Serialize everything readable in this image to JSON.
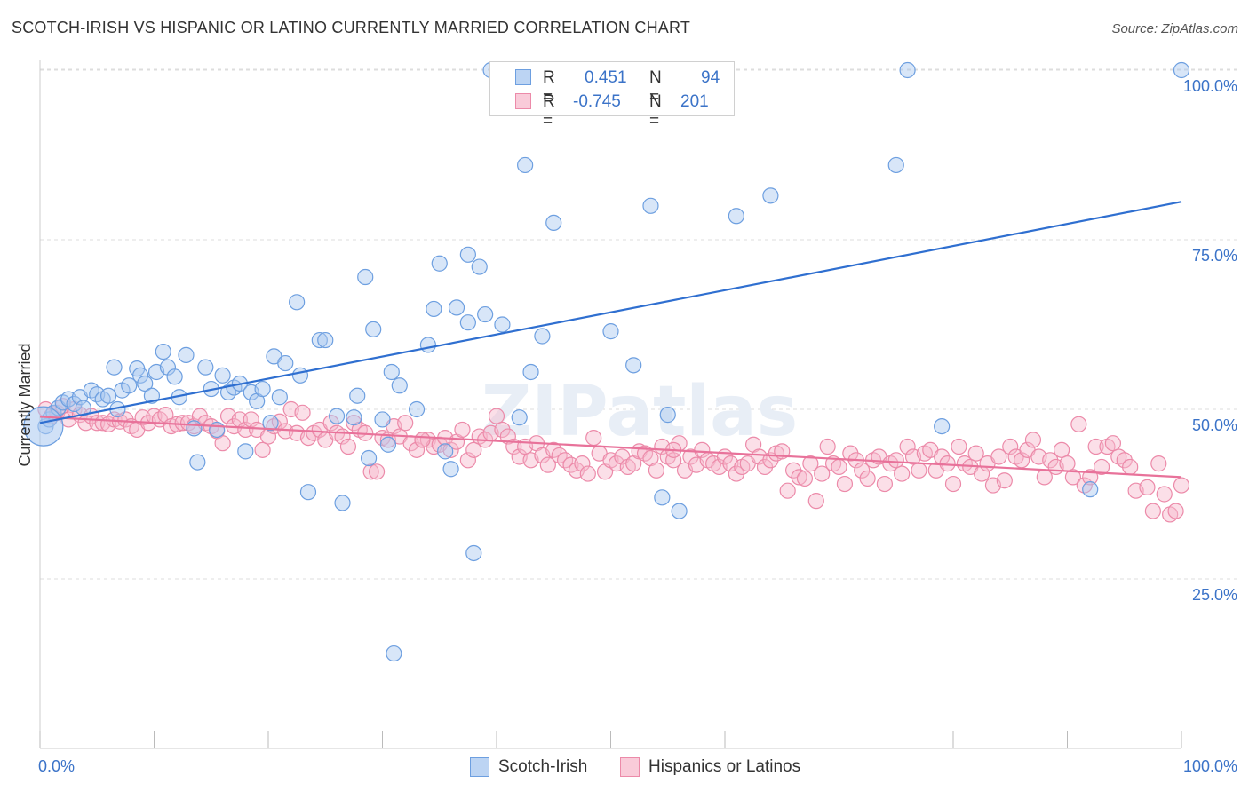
{
  "title": "SCOTCH-IRISH VS HISPANIC OR LATINO CURRENTLY MARRIED CORRELATION CHART",
  "source": "Source: ZipAtlas.com",
  "watermark": "ZIPatlas",
  "legend": {
    "rows": [
      {
        "r_label": "R =",
        "r_value": "0.451",
        "n_label": "N =",
        "n_value": "94"
      },
      {
        "r_label": "R =",
        "r_value": "-0.745",
        "n_label": "N =",
        "n_value": "201"
      }
    ]
  },
  "bottom_legend": [
    {
      "label": "Scotch-Irish"
    },
    {
      "label": "Hispanics or Latinos"
    }
  ],
  "colors": {
    "blue_fill": "#a9c8f0",
    "blue_stroke": "#6d9fe0",
    "blue_line": "#2f6fd0",
    "pink_fill": "#f6b8cc",
    "pink_stroke": "#ec8aa9",
    "pink_line": "#e8729a",
    "axis_text": "#3b73c8",
    "grid": "#dddddd"
  },
  "chart_data": {
    "type": "scatter",
    "title": "SCOTCH-IRISH VS HISPANIC OR LATINO CURRENTLY MARRIED CORRELATION CHART",
    "xlabel": "",
    "ylabel": "Currently Married",
    "xlim": [
      0,
      100
    ],
    "ylim": [
      0,
      102
    ],
    "x_tick_labels": [
      "0.0%",
      "100.0%"
    ],
    "y_ticks": [
      25,
      50,
      75,
      100
    ],
    "y_tick_labels": [
      "25.0%",
      "50.0%",
      "75.0%",
      "100.0%"
    ],
    "grid": true,
    "legend_placement": "top-center",
    "series": [
      {
        "name": "Scotch-Irish",
        "r": 0.451,
        "n": 94,
        "trend": {
          "x": [
            0,
            100
          ],
          "y": [
            48.0,
            80.6
          ]
        },
        "points": [
          [
            0.5,
            47.5
          ],
          [
            0.8,
            48.5
          ],
          [
            1.2,
            49.5
          ],
          [
            1.6,
            50.2
          ],
          [
            2.0,
            51.0
          ],
          [
            2.5,
            51.5
          ],
          [
            3.0,
            50.8
          ],
          [
            3.5,
            51.8
          ],
          [
            4.5,
            52.8
          ],
          [
            5.0,
            52.2
          ],
          [
            5.5,
            51.5
          ],
          [
            6.5,
            56.2
          ],
          [
            6.8,
            50.0
          ],
          [
            7.2,
            52.8
          ],
          [
            7.8,
            53.5
          ],
          [
            8.5,
            56.0
          ],
          [
            8.8,
            55.0
          ],
          [
            9.2,
            53.8
          ],
          [
            9.8,
            52.0
          ],
          [
            10.2,
            55.5
          ],
          [
            10.8,
            58.5
          ],
          [
            11.2,
            56.2
          ],
          [
            11.8,
            54.8
          ],
          [
            12.2,
            51.8
          ],
          [
            12.8,
            58.0
          ],
          [
            13.5,
            47.2
          ],
          [
            13.8,
            42.2
          ],
          [
            14.5,
            56.2
          ],
          [
            15.0,
            53.0
          ],
          [
            15.5,
            47.0
          ],
          [
            16.0,
            55.0
          ],
          [
            16.5,
            52.5
          ],
          [
            17.0,
            53.2
          ],
          [
            17.5,
            53.8
          ],
          [
            18.0,
            43.8
          ],
          [
            18.5,
            52.5
          ],
          [
            19.0,
            51.2
          ],
          [
            19.5,
            53.0
          ],
          [
            20.2,
            48.0
          ],
          [
            20.5,
            57.8
          ],
          [
            21.0,
            51.8
          ],
          [
            21.5,
            56.8
          ],
          [
            22.5,
            65.8
          ],
          [
            22.8,
            55.0
          ],
          [
            23.5,
            37.8
          ],
          [
            24.5,
            60.2
          ],
          [
            25.0,
            60.2
          ],
          [
            26.0,
            49.0
          ],
          [
            26.5,
            36.2
          ],
          [
            27.5,
            48.8
          ],
          [
            27.8,
            52.0
          ],
          [
            28.5,
            69.5
          ],
          [
            28.8,
            42.8
          ],
          [
            29.2,
            61.8
          ],
          [
            30.0,
            48.5
          ],
          [
            30.5,
            44.8
          ],
          [
            30.8,
            55.5
          ],
          [
            31.0,
            14.0
          ],
          [
            31.5,
            53.5
          ],
          [
            33.0,
            50.0
          ],
          [
            34.0,
            59.5
          ],
          [
            34.5,
            64.8
          ],
          [
            35.0,
            71.5
          ],
          [
            35.5,
            43.8
          ],
          [
            36.0,
            41.2
          ],
          [
            36.5,
            65.0
          ],
          [
            37.5,
            72.8
          ],
          [
            37.5,
            62.8
          ],
          [
            38.0,
            28.8
          ],
          [
            38.5,
            71.0
          ],
          [
            39.0,
            64.0
          ],
          [
            39.5,
            100.0
          ],
          [
            40.5,
            62.5
          ],
          [
            42.0,
            48.8
          ],
          [
            42.5,
            86.0
          ],
          [
            43.0,
            55.5
          ],
          [
            44.0,
            60.8
          ],
          [
            45.0,
            77.5
          ],
          [
            49.0,
            100.0
          ],
          [
            50.0,
            61.5
          ],
          [
            52.0,
            56.5
          ],
          [
            53.5,
            80.0
          ],
          [
            55.0,
            49.2
          ],
          [
            56.0,
            35.0
          ],
          [
            61.0,
            78.5
          ],
          [
            64.0,
            81.5
          ],
          [
            75.0,
            86.0
          ],
          [
            76.0,
            100.0
          ],
          [
            79.0,
            47.5
          ],
          [
            92.0,
            38.2
          ],
          [
            100.0,
            100.0
          ],
          [
            54.5,
            37.0
          ],
          [
            3.8,
            50.2
          ],
          [
            6.0,
            52.0
          ]
        ],
        "big_point": [
          0.3,
          47.5
        ]
      },
      {
        "name": "Hispanics or Latinos",
        "r": -0.745,
        "n": 201,
        "trend": {
          "x": [
            0,
            100
          ],
          "y": [
            48.9,
            40.0
          ]
        },
        "points": [
          [
            0.5,
            50.0
          ],
          [
            1.0,
            49.0
          ],
          [
            1.5,
            49.5
          ],
          [
            2.0,
            50.5
          ],
          [
            2.5,
            48.5
          ],
          [
            3.0,
            50.0
          ],
          [
            3.5,
            49.2
          ],
          [
            4.0,
            48.0
          ],
          [
            4.5,
            49.0
          ],
          [
            5.0,
            48.0
          ],
          [
            5.5,
            48.0
          ],
          [
            6.0,
            47.8
          ],
          [
            6.5,
            48.5
          ],
          [
            7.0,
            48.2
          ],
          [
            7.5,
            48.5
          ],
          [
            8.0,
            47.5
          ],
          [
            8.5,
            47.0
          ],
          [
            9.0,
            48.8
          ],
          [
            9.5,
            48.0
          ],
          [
            10.0,
            49.0
          ],
          [
            10.5,
            48.5
          ],
          [
            11.0,
            49.2
          ],
          [
            11.5,
            47.5
          ],
          [
            12.0,
            47.8
          ],
          [
            12.5,
            48.0
          ],
          [
            13.0,
            48.0
          ],
          [
            13.5,
            47.5
          ],
          [
            14.0,
            49.0
          ],
          [
            14.5,
            48.0
          ],
          [
            15.0,
            47.5
          ],
          [
            15.5,
            46.8
          ],
          [
            16.0,
            45.0
          ],
          [
            16.5,
            49.0
          ],
          [
            17.0,
            47.5
          ],
          [
            17.5,
            48.5
          ],
          [
            18.0,
            47.0
          ],
          [
            18.5,
            48.5
          ],
          [
            19.0,
            47.0
          ],
          [
            19.5,
            44.0
          ],
          [
            20.0,
            46.0
          ],
          [
            20.5,
            47.5
          ],
          [
            21.0,
            48.2
          ],
          [
            21.5,
            46.8
          ],
          [
            22.0,
            50.0
          ],
          [
            22.5,
            46.5
          ],
          [
            23.0,
            49.5
          ],
          [
            23.5,
            45.8
          ],
          [
            24.0,
            46.5
          ],
          [
            24.5,
            47.0
          ],
          [
            25.0,
            45.5
          ],
          [
            25.5,
            48.0
          ],
          [
            26.0,
            46.5
          ],
          [
            26.5,
            46.0
          ],
          [
            27.0,
            44.5
          ],
          [
            27.5,
            48.0
          ],
          [
            28.0,
            47.0
          ],
          [
            28.5,
            46.5
          ],
          [
            29.0,
            40.8
          ],
          [
            29.5,
            40.8
          ],
          [
            30.0,
            45.8
          ],
          [
            30.5,
            45.5
          ],
          [
            31.0,
            47.5
          ],
          [
            31.5,
            46.0
          ],
          [
            32.0,
            48.0
          ],
          [
            32.5,
            45.0
          ],
          [
            33.0,
            44.0
          ],
          [
            33.5,
            45.5
          ],
          [
            34.0,
            45.5
          ],
          [
            34.5,
            44.5
          ],
          [
            35.0,
            44.8
          ],
          [
            35.5,
            45.8
          ],
          [
            36.0,
            44.0
          ],
          [
            36.5,
            45.2
          ],
          [
            37.0,
            47.0
          ],
          [
            37.5,
            42.5
          ],
          [
            38.0,
            44.0
          ],
          [
            38.5,
            46.0
          ],
          [
            39.0,
            45.5
          ],
          [
            39.5,
            46.5
          ],
          [
            40.0,
            49.0
          ],
          [
            40.5,
            47.0
          ],
          [
            41.0,
            46.0
          ],
          [
            41.5,
            44.5
          ],
          [
            42.0,
            43.0
          ],
          [
            42.5,
            44.5
          ],
          [
            43.0,
            42.5
          ],
          [
            43.5,
            45.0
          ],
          [
            44.0,
            43.2
          ],
          [
            44.5,
            41.8
          ],
          [
            45.0,
            44.0
          ],
          [
            45.5,
            43.2
          ],
          [
            46.0,
            42.5
          ],
          [
            46.5,
            41.8
          ],
          [
            47.0,
            41.0
          ],
          [
            47.5,
            42.0
          ],
          [
            48.0,
            40.5
          ],
          [
            48.5,
            45.8
          ],
          [
            49.0,
            43.5
          ],
          [
            49.5,
            40.8
          ],
          [
            50.0,
            42.5
          ],
          [
            50.5,
            42.0
          ],
          [
            51.0,
            43.0
          ],
          [
            51.5,
            41.5
          ],
          [
            52.0,
            42.0
          ],
          [
            52.5,
            43.8
          ],
          [
            53.0,
            43.5
          ],
          [
            53.5,
            42.8
          ],
          [
            54.0,
            41.0
          ],
          [
            54.5,
            44.5
          ],
          [
            55.0,
            43.0
          ],
          [
            55.5,
            42.5
          ],
          [
            56.0,
            45.0
          ],
          [
            56.5,
            41.0
          ],
          [
            57.0,
            43.0
          ],
          [
            57.5,
            41.8
          ],
          [
            58.0,
            44.0
          ],
          [
            58.5,
            42.5
          ],
          [
            59.0,
            42.0
          ],
          [
            59.5,
            41.5
          ],
          [
            60.0,
            43.0
          ],
          [
            60.5,
            42.0
          ],
          [
            61.0,
            40.5
          ],
          [
            61.5,
            41.5
          ],
          [
            62.0,
            42.0
          ],
          [
            62.5,
            44.8
          ],
          [
            63.0,
            43.0
          ],
          [
            63.5,
            41.5
          ],
          [
            64.0,
            42.5
          ],
          [
            64.5,
            43.5
          ],
          [
            65.0,
            43.8
          ],
          [
            65.5,
            38.0
          ],
          [
            66.0,
            41.0
          ],
          [
            66.5,
            40.0
          ],
          [
            67.0,
            39.8
          ],
          [
            67.5,
            42.0
          ],
          [
            68.0,
            36.5
          ],
          [
            68.5,
            40.5
          ],
          [
            69.0,
            44.5
          ],
          [
            69.5,
            42.0
          ],
          [
            70.0,
            41.5
          ],
          [
            70.5,
            39.0
          ],
          [
            71.0,
            43.5
          ],
          [
            71.5,
            42.5
          ],
          [
            72.0,
            41.0
          ],
          [
            72.5,
            39.8
          ],
          [
            73.0,
            42.5
          ],
          [
            73.5,
            43.0
          ],
          [
            74.0,
            39.0
          ],
          [
            74.5,
            42.0
          ],
          [
            75.0,
            42.5
          ],
          [
            75.5,
            40.5
          ],
          [
            76.0,
            44.5
          ],
          [
            76.5,
            43.0
          ],
          [
            77.0,
            41.0
          ],
          [
            77.5,
            43.5
          ],
          [
            78.0,
            44.0
          ],
          [
            78.5,
            41.0
          ],
          [
            79.0,
            43.0
          ],
          [
            79.5,
            42.0
          ],
          [
            80.0,
            39.0
          ],
          [
            80.5,
            44.5
          ],
          [
            81.0,
            42.0
          ],
          [
            81.5,
            41.5
          ],
          [
            82.0,
            43.5
          ],
          [
            82.5,
            40.5
          ],
          [
            83.0,
            42.0
          ],
          [
            83.5,
            38.8
          ],
          [
            84.0,
            43.0
          ],
          [
            84.5,
            39.5
          ],
          [
            85.0,
            44.5
          ],
          [
            85.5,
            43.0
          ],
          [
            86.0,
            42.5
          ],
          [
            86.5,
            44.0
          ],
          [
            87.0,
            45.5
          ],
          [
            87.5,
            43.0
          ],
          [
            88.0,
            40.0
          ],
          [
            88.5,
            42.5
          ],
          [
            89.0,
            41.5
          ],
          [
            89.5,
            44.0
          ],
          [
            90.0,
            42.0
          ],
          [
            90.5,
            40.0
          ],
          [
            91.0,
            47.8
          ],
          [
            91.5,
            38.8
          ],
          [
            92.0,
            40.0
          ],
          [
            92.5,
            44.5
          ],
          [
            93.0,
            41.5
          ],
          [
            93.5,
            44.5
          ],
          [
            94.0,
            45.0
          ],
          [
            94.5,
            43.0
          ],
          [
            95.0,
            42.5
          ],
          [
            95.5,
            41.5
          ],
          [
            96.0,
            38.0
          ],
          [
            97.5,
            35.0
          ],
          [
            98.0,
            42.0
          ],
          [
            98.5,
            37.5
          ],
          [
            99.0,
            34.5
          ],
          [
            99.5,
            35.0
          ],
          [
            100.0,
            38.8
          ],
          [
            97.0,
            38.5
          ],
          [
            33.5,
            45.5
          ],
          [
            55.5,
            44.0
          ]
        ]
      }
    ]
  }
}
